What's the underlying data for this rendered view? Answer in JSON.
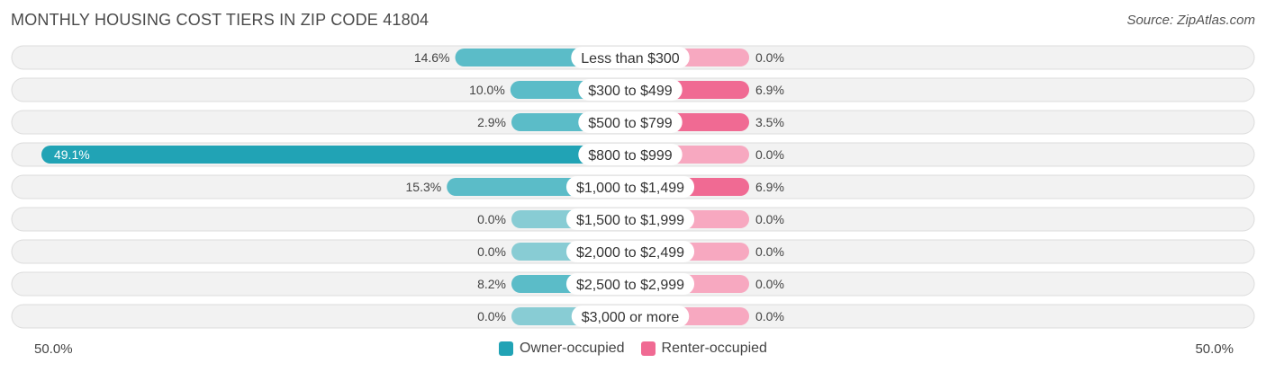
{
  "header": {
    "title": "MONTHLY HOUSING COST TIERS IN ZIP CODE 41804",
    "source": "Source: ZipAtlas.com"
  },
  "axis": {
    "left_label": "50.0%",
    "right_label": "50.0%"
  },
  "legend": {
    "owner_label": "Owner-occupied",
    "renter_label": "Renter-occupied"
  },
  "colors": {
    "owner": "#5bbcc8",
    "owner_highlight": "#21a3b5",
    "renter": "#f06a93",
    "renter_light": "#f7a8c0"
  },
  "chart_data": {
    "type": "bar",
    "orientation": "horizontal-diverging",
    "title": "MONTHLY HOUSING COST TIERS IN ZIP CODE 41804",
    "xlim": [
      -50,
      50
    ],
    "categories": [
      "Less than $300",
      "$300 to $499",
      "$500 to $799",
      "$800 to $999",
      "$1,000 to $1,499",
      "$1,500 to $1,999",
      "$2,000 to $2,499",
      "$2,500 to $2,999",
      "$3,000 or more"
    ],
    "series": [
      {
        "name": "Owner-occupied",
        "values": [
          14.6,
          10.0,
          2.9,
          49.1,
          15.3,
          0.0,
          0.0,
          8.2,
          0.0
        ],
        "labels": [
          "14.6%",
          "10.0%",
          "2.9%",
          "49.1%",
          "15.3%",
          "0.0%",
          "0.0%",
          "8.2%",
          "0.0%"
        ]
      },
      {
        "name": "Renter-occupied",
        "values": [
          0.0,
          6.9,
          3.5,
          0.0,
          6.9,
          0.0,
          0.0,
          0.0,
          0.0
        ],
        "labels": [
          "0.0%",
          "6.9%",
          "3.5%",
          "0.0%",
          "6.9%",
          "0.0%",
          "0.0%",
          "0.0%",
          "0.0%"
        ]
      }
    ]
  }
}
